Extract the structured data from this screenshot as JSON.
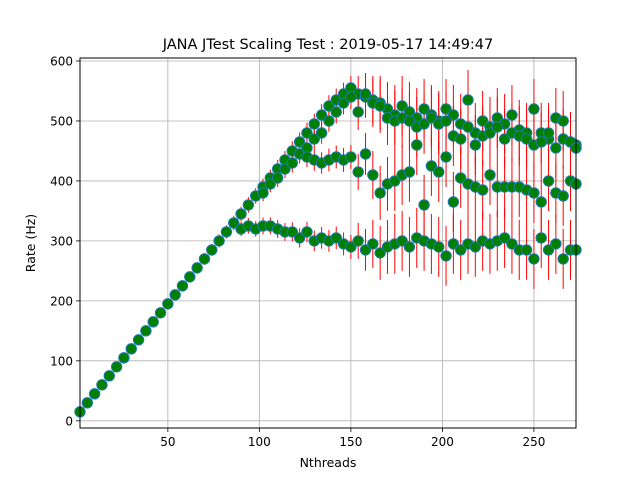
{
  "chart_data": {
    "type": "scatter",
    "title": "JANA JTest Scaling Test : 2019-05-17 14:49:47",
    "xlabel": "Nthreads",
    "ylabel": "Rate (Hz)",
    "xlim": [
      2,
      273
    ],
    "ylim": [
      -12,
      605
    ],
    "xticks": [
      50,
      100,
      150,
      200,
      250
    ],
    "yticks": [
      0,
      100,
      200,
      300,
      400,
      500,
      600
    ],
    "grid": true,
    "marker_color": "#008000",
    "marker_edge_color": "#1f77b4",
    "errorbar_color": "#ff0000",
    "series": [
      {
        "values": [
          [
            2,
            15
          ],
          [
            6,
            30
          ],
          [
            10,
            45
          ],
          [
            14,
            60
          ],
          [
            18,
            75
          ],
          [
            22,
            90
          ],
          [
            26,
            105
          ],
          [
            30,
            120
          ],
          [
            34,
            135
          ],
          [
            38,
            150
          ],
          [
            42,
            165
          ],
          [
            46,
            180
          ],
          [
            50,
            195
          ],
          [
            54,
            210
          ],
          [
            58,
            225
          ],
          [
            62,
            240
          ],
          [
            66,
            255
          ],
          [
            70,
            270
          ],
          [
            74,
            285
          ],
          [
            78,
            300
          ],
          [
            82,
            315
          ],
          [
            86,
            330
          ],
          [
            90,
            345
          ],
          [
            94,
            360
          ],
          [
            98,
            375
          ],
          [
            102,
            390
          ],
          [
            106,
            405
          ],
          [
            110,
            420
          ],
          [
            114,
            435
          ],
          [
            118,
            450
          ],
          [
            122,
            465
          ],
          [
            126,
            480
          ],
          [
            130,
            495
          ],
          [
            134,
            510
          ],
          [
            138,
            525
          ],
          [
            142,
            535
          ],
          [
            146,
            545
          ],
          [
            150,
            555
          ],
          [
            154,
            545
          ],
          [
            158,
            540
          ],
          [
            162,
            535
          ],
          [
            166,
            530
          ],
          [
            170,
            520
          ],
          [
            174,
            510
          ],
          [
            178,
            525
          ],
          [
            182,
            515
          ],
          [
            186,
            505
          ],
          [
            190,
            520
          ],
          [
            194,
            510
          ],
          [
            198,
            500
          ],
          [
            202,
            520
          ],
          [
            206,
            510
          ],
          [
            210,
            495
          ],
          [
            214,
            535
          ],
          [
            218,
            480
          ],
          [
            222,
            500
          ],
          [
            226,
            490
          ],
          [
            230,
            505
          ],
          [
            234,
            495
          ],
          [
            238,
            510
          ],
          [
            242,
            485
          ],
          [
            246,
            480
          ],
          [
            250,
            520
          ],
          [
            254,
            480
          ],
          [
            258,
            470
          ],
          [
            262,
            505
          ],
          [
            266,
            500
          ],
          [
            270,
            465
          ],
          [
            273,
            460
          ]
        ],
        "errors": [
          2,
          2,
          3,
          3,
          4,
          4,
          5,
          5,
          6,
          6,
          7,
          7,
          8,
          8,
          9,
          9,
          9,
          10,
          10,
          11,
          11,
          12,
          12,
          13,
          13,
          14,
          14,
          15,
          15,
          16,
          16,
          17,
          17,
          18,
          18,
          19,
          19,
          20,
          30,
          35,
          40,
          45,
          45,
          50,
          50,
          50,
          50,
          50,
          50,
          50,
          50,
          50,
          50,
          50,
          50,
          50,
          50,
          50,
          50,
          50,
          50,
          50,
          50,
          50,
          50,
          50,
          50,
          50,
          50
        ]
      },
      {
        "values": [
          [
            102,
            380
          ],
          [
            106,
            395
          ],
          [
            110,
            405
          ],
          [
            114,
            420
          ],
          [
            118,
            430
          ],
          [
            122,
            445
          ],
          [
            126,
            455
          ],
          [
            130,
            470
          ],
          [
            134,
            480
          ],
          [
            138,
            500
          ],
          [
            142,
            515
          ],
          [
            146,
            530
          ],
          [
            150,
            540
          ],
          [
            154,
            515
          ],
          [
            158,
            545
          ],
          [
            162,
            530
          ],
          [
            166,
            525
          ],
          [
            170,
            505
          ],
          [
            174,
            500
          ],
          [
            178,
            505
          ],
          [
            182,
            500
          ],
          [
            186,
            490
          ],
          [
            190,
            495
          ],
          [
            194,
            505
          ],
          [
            198,
            495
          ],
          [
            202,
            500
          ],
          [
            206,
            475
          ],
          [
            210,
            470
          ],
          [
            214,
            490
          ],
          [
            218,
            460
          ],
          [
            222,
            475
          ],
          [
            226,
            480
          ],
          [
            230,
            490
          ],
          [
            234,
            470
          ],
          [
            238,
            480
          ],
          [
            242,
            475
          ],
          [
            246,
            470
          ],
          [
            250,
            460
          ],
          [
            254,
            465
          ],
          [
            258,
            480
          ],
          [
            262,
            455
          ],
          [
            266,
            470
          ],
          [
            270,
            465
          ],
          [
            273,
            455
          ]
        ],
        "errors": [
          14,
          14,
          15,
          15,
          16,
          16,
          17,
          17,
          18,
          18,
          19,
          19,
          20,
          30,
          35,
          40,
          45,
          45,
          50,
          50,
          50,
          50,
          50,
          50,
          50,
          50,
          50,
          50,
          50,
          50,
          50,
          50,
          50,
          50,
          50,
          50,
          50,
          50,
          50,
          50,
          50,
          50,
          50,
          50
        ]
      },
      {
        "values": [
          [
            126,
            440
          ],
          [
            130,
            435
          ],
          [
            134,
            430
          ],
          [
            138,
            435
          ],
          [
            142,
            440
          ],
          [
            146,
            435
          ],
          [
            150,
            440
          ],
          [
            154,
            415
          ],
          [
            158,
            445
          ],
          [
            162,
            410
          ],
          [
            166,
            380
          ],
          [
            170,
            395
          ],
          [
            174,
            400
          ],
          [
            178,
            410
          ],
          [
            182,
            415
          ],
          [
            186,
            460
          ],
          [
            190,
            360
          ],
          [
            194,
            425
          ],
          [
            198,
            415
          ],
          [
            202,
            440
          ],
          [
            206,
            365
          ],
          [
            210,
            405
          ],
          [
            214,
            395
          ],
          [
            218,
            390
          ],
          [
            222,
            385
          ],
          [
            226,
            410
          ],
          [
            230,
            390
          ],
          [
            234,
            390
          ],
          [
            238,
            390
          ],
          [
            242,
            390
          ],
          [
            246,
            385
          ],
          [
            250,
            380
          ],
          [
            254,
            365
          ],
          [
            258,
            400
          ],
          [
            262,
            380
          ],
          [
            266,
            375
          ],
          [
            270,
            400
          ],
          [
            273,
            395
          ]
        ],
        "errors": [
          17,
          18,
          18,
          19,
          19,
          20,
          20,
          30,
          35,
          40,
          45,
          45,
          50,
          50,
          50,
          50,
          50,
          50,
          50,
          50,
          50,
          50,
          50,
          50,
          50,
          50,
          50,
          50,
          50,
          50,
          50,
          50,
          50,
          50,
          50,
          50,
          50,
          50
        ]
      },
      {
        "values": [
          [
            90,
            320
          ],
          [
            94,
            325
          ],
          [
            98,
            320
          ],
          [
            102,
            325
          ],
          [
            106,
            325
          ],
          [
            110,
            320
          ],
          [
            114,
            315
          ],
          [
            118,
            315
          ],
          [
            122,
            305
          ],
          [
            126,
            315
          ],
          [
            130,
            300
          ],
          [
            134,
            305
          ],
          [
            138,
            300
          ],
          [
            142,
            305
          ],
          [
            146,
            295
          ],
          [
            150,
            290
          ],
          [
            154,
            300
          ],
          [
            158,
            285
          ],
          [
            162,
            295
          ],
          [
            166,
            280
          ],
          [
            170,
            290
          ],
          [
            174,
            295
          ],
          [
            178,
            300
          ],
          [
            182,
            290
          ],
          [
            186,
            305
          ],
          [
            190,
            300
          ],
          [
            194,
            295
          ],
          [
            198,
            290
          ],
          [
            202,
            275
          ],
          [
            206,
            295
          ],
          [
            210,
            285
          ],
          [
            214,
            295
          ],
          [
            218,
            290
          ],
          [
            222,
            300
          ],
          [
            226,
            295
          ],
          [
            230,
            300
          ],
          [
            234,
            305
          ],
          [
            238,
            295
          ],
          [
            242,
            285
          ],
          [
            246,
            285
          ],
          [
            250,
            270
          ],
          [
            254,
            305
          ],
          [
            258,
            285
          ],
          [
            262,
            295
          ],
          [
            266,
            270
          ],
          [
            270,
            285
          ],
          [
            273,
            285
          ]
        ],
        "errors": [
          12,
          13,
          13,
          14,
          14,
          15,
          15,
          16,
          16,
          17,
          17,
          18,
          18,
          19,
          19,
          20,
          30,
          35,
          40,
          45,
          45,
          50,
          50,
          50,
          50,
          50,
          50,
          50,
          50,
          50,
          50,
          50,
          50,
          50,
          50,
          50,
          50,
          50,
          50,
          50,
          50,
          50,
          50,
          50,
          50,
          50,
          50
        ]
      }
    ]
  }
}
